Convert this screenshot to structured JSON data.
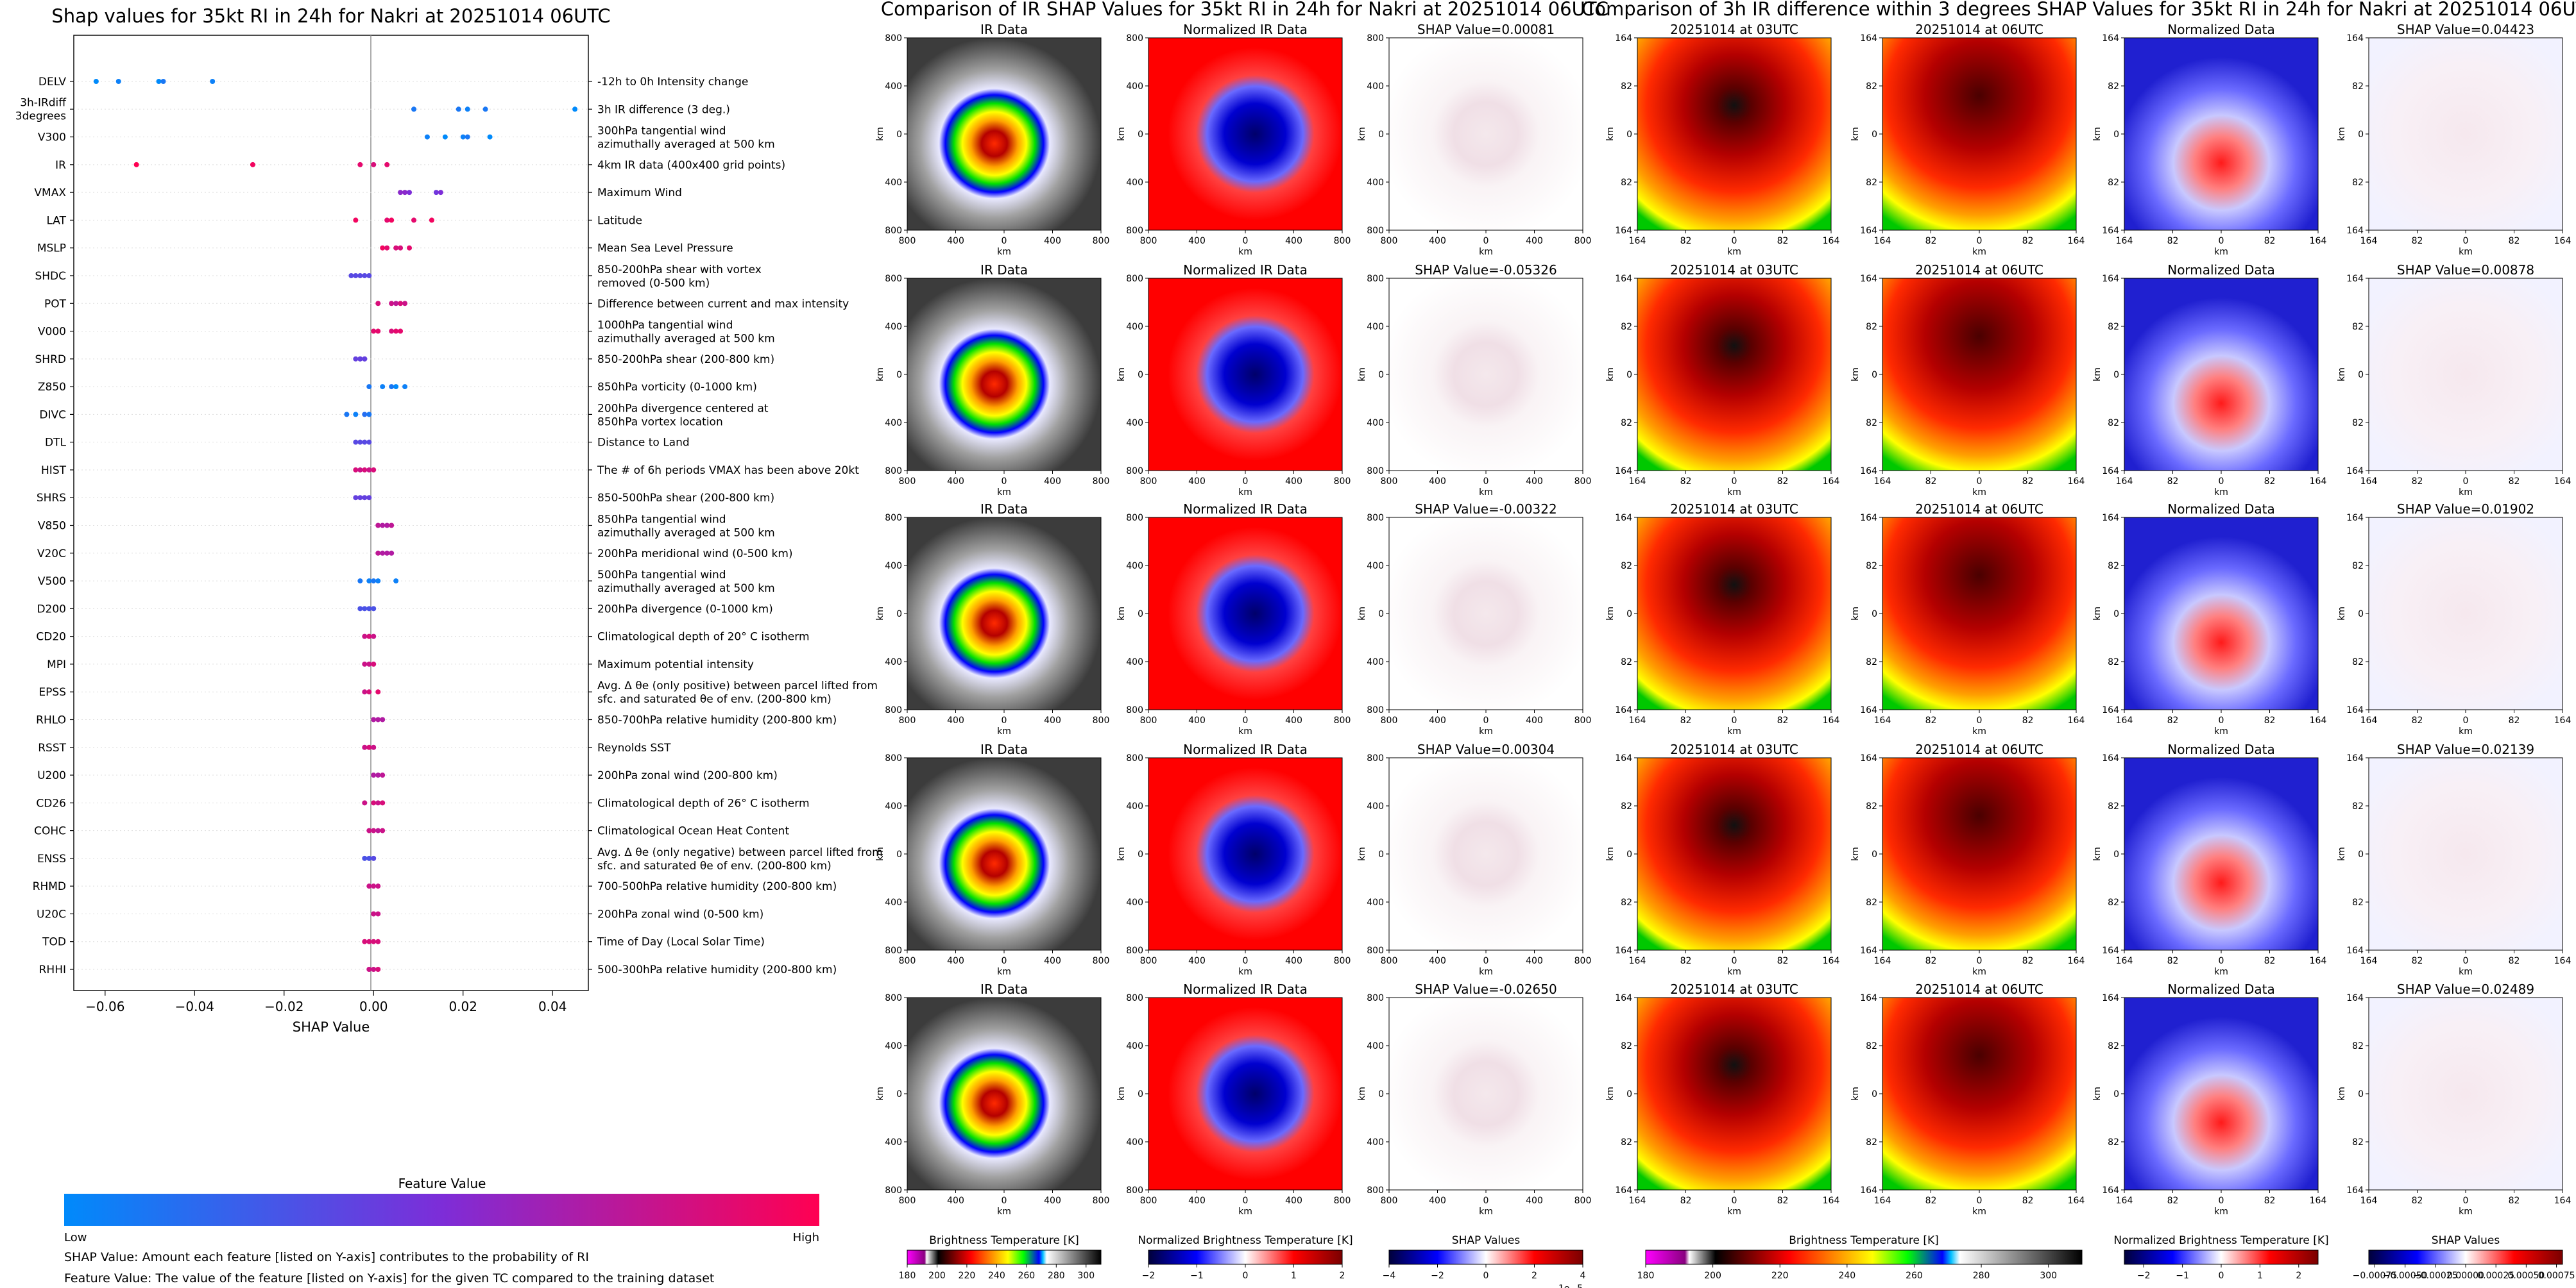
{
  "shap_panel": {
    "title": "Shap values for 35kt RI in 24h for Nakri at 20251014 06UTC",
    "xlabel": "SHAP Value",
    "xlim": [
      -0.067,
      0.048
    ],
    "xticks": [
      -0.06,
      -0.04,
      -0.02,
      0.0,
      0.02,
      0.04
    ],
    "xtick_labels": [
      "−0.06",
      "−0.04",
      "−0.02",
      "0.00",
      "0.02",
      "0.04"
    ],
    "colorbar_title": "Feature Value",
    "colorbar_low": "Low",
    "colorbar_high": "High",
    "colormap": [
      "#008afb",
      "#7d2dd8",
      "#ff0052"
    ],
    "note_shap": "SHAP Value: Amount each feature [listed on Y-axis] contributes to the probability of RI",
    "note_feature": "Feature Value: The value of the feature [listed on Y-axis] for the given TC compared to the training dataset"
  },
  "chart_data": [
    {
      "type": "scatter",
      "title": "Shap values for 35kt RI in 24h for Nakri at 20251014 06UTC",
      "xlabel": "SHAP Value",
      "xlim": [
        -0.067,
        0.048
      ],
      "features": [
        {
          "code": "DELV",
          "desc": "-12h to 0h Intensity change",
          "points": [
            [
              -0.062,
              0.0
            ],
            [
              -0.057,
              0.05
            ],
            [
              -0.048,
              0.0
            ],
            [
              -0.047,
              0.1
            ],
            [
              -0.036,
              0.05
            ]
          ]
        },
        {
          "code": "3h-IRdiff 3degrees",
          "desc": "3h IR difference (3 deg.)",
          "points": [
            [
              0.009,
              0.1
            ],
            [
              0.019,
              0.1
            ],
            [
              0.021,
              0.05
            ],
            [
              0.025,
              0.1
            ],
            [
              0.045,
              0.0
            ]
          ]
        },
        {
          "code": "V300",
          "desc": "300hPa tangential wind azimuthally averaged at 500 km",
          "points": [
            [
              0.012,
              0.05
            ],
            [
              0.016,
              0.0
            ],
            [
              0.02,
              0.05
            ],
            [
              0.021,
              0.1
            ],
            [
              0.026,
              0.0
            ]
          ]
        },
        {
          "code": "IR",
          "desc": "4km IR data (400x400 grid points)",
          "points": [
            [
              -0.053,
              1.0
            ],
            [
              -0.027,
              0.95
            ],
            [
              -0.003,
              0.9
            ],
            [
              0.0,
              0.85
            ],
            [
              0.003,
              0.9
            ]
          ]
        },
        {
          "code": "VMAX",
          "desc": "Maximum Wind",
          "points": [
            [
              0.006,
              0.55
            ],
            [
              0.007,
              0.55
            ],
            [
              0.008,
              0.5
            ],
            [
              0.014,
              0.45
            ],
            [
              0.015,
              0.5
            ]
          ]
        },
        {
          "code": "LAT",
          "desc": "Latitude",
          "points": [
            [
              -0.004,
              0.95
            ],
            [
              0.003,
              0.9
            ],
            [
              0.004,
              0.95
            ],
            [
              0.009,
              0.9
            ],
            [
              0.013,
              0.95
            ]
          ]
        },
        {
          "code": "MSLP",
          "desc": "Mean Sea Level Pressure",
          "points": [
            [
              0.002,
              0.95
            ],
            [
              0.003,
              0.9
            ],
            [
              0.005,
              0.85
            ],
            [
              0.006,
              0.85
            ],
            [
              0.008,
              0.9
            ]
          ]
        },
        {
          "code": "SHDC",
          "desc": "850-200hPa shear with vortex removed (0-500 km)",
          "points": [
            [
              -0.005,
              0.35
            ],
            [
              -0.004,
              0.35
            ],
            [
              -0.003,
              0.35
            ],
            [
              -0.002,
              0.35
            ],
            [
              -0.001,
              0.35
            ]
          ]
        },
        {
          "code": "POT",
          "desc": "Difference between current and max intensity",
          "points": [
            [
              0.001,
              0.85
            ],
            [
              0.004,
              0.8
            ],
            [
              0.005,
              0.75
            ],
            [
              0.006,
              0.85
            ],
            [
              0.007,
              0.8
            ]
          ]
        },
        {
          "code": "V000",
          "desc": "1000hPa tangential wind azimuthally averaged at 500 km",
          "points": [
            [
              0.0,
              0.9
            ],
            [
              0.001,
              0.9
            ],
            [
              0.004,
              0.85
            ],
            [
              0.005,
              0.9
            ],
            [
              0.006,
              0.9
            ]
          ]
        },
        {
          "code": "SHRD",
          "desc": "850-200hPa shear (200-800 km)",
          "points": [
            [
              -0.004,
              0.4
            ],
            [
              -0.003,
              0.4
            ],
            [
              -0.003,
              0.4
            ],
            [
              -0.002,
              0.4
            ],
            [
              -0.002,
              0.4
            ]
          ]
        },
        {
          "code": "Z850",
          "desc": "850hPa vorticity (0-1000 km)",
          "points": [
            [
              -0.001,
              0.1
            ],
            [
              0.002,
              0.05
            ],
            [
              0.004,
              0.1
            ],
            [
              0.005,
              0.0
            ],
            [
              0.007,
              0.05
            ]
          ]
        },
        {
          "code": "DIVC",
          "desc": "200hPa divergence centered at 850hPa vortex location",
          "points": [
            [
              -0.006,
              0.1
            ],
            [
              -0.004,
              0.05
            ],
            [
              -0.002,
              0.15
            ],
            [
              -0.001,
              0.1
            ]
          ]
        },
        {
          "code": "DTL",
          "desc": "Distance to Land",
          "points": [
            [
              -0.004,
              0.35
            ],
            [
              -0.003,
              0.35
            ],
            [
              -0.002,
              0.35
            ],
            [
              -0.001,
              0.35
            ]
          ]
        },
        {
          "code": "HIST",
          "desc": "The # of 6h periods VMAX has been above 20kt",
          "points": [
            [
              -0.004,
              0.85
            ],
            [
              -0.003,
              0.8
            ],
            [
              -0.002,
              0.85
            ],
            [
              -0.001,
              0.8
            ],
            [
              0.0,
              0.85
            ]
          ]
        },
        {
          "code": "SHRS",
          "desc": "850-500hPa shear (200-800 km)",
          "points": [
            [
              -0.004,
              0.4
            ],
            [
              -0.003,
              0.4
            ],
            [
              -0.002,
              0.4
            ],
            [
              -0.001,
              0.4
            ]
          ]
        },
        {
          "code": "V850",
          "desc": "850hPa tangential wind azimuthally averaged at 500 km",
          "points": [
            [
              0.001,
              0.75
            ],
            [
              0.002,
              0.7
            ],
            [
              0.003,
              0.7
            ],
            [
              0.004,
              0.75
            ]
          ]
        },
        {
          "code": "V20C",
          "desc": "200hPa meridional wind (0-500 km)",
          "points": [
            [
              0.001,
              0.75
            ],
            [
              0.002,
              0.7
            ],
            [
              0.003,
              0.7
            ],
            [
              0.004,
              0.7
            ]
          ]
        },
        {
          "code": "V500",
          "desc": "500hPa tangential wind azimuthally averaged at 500 km",
          "points": [
            [
              -0.003,
              0.1
            ],
            [
              -0.001,
              0.05
            ],
            [
              0.0,
              0.1
            ],
            [
              0.001,
              0.05
            ],
            [
              0.005,
              0.05
            ]
          ]
        },
        {
          "code": "D200",
          "desc": "200hPa divergence (0-1000 km)",
          "points": [
            [
              -0.003,
              0.3
            ],
            [
              -0.002,
              0.3
            ],
            [
              -0.001,
              0.3
            ],
            [
              0.0,
              0.3
            ]
          ]
        },
        {
          "code": "CD20",
          "desc": "Climatological depth of 20° C isotherm",
          "points": [
            [
              -0.002,
              0.8
            ],
            [
              -0.001,
              0.85
            ],
            [
              0.0,
              0.8
            ]
          ]
        },
        {
          "code": "MPI",
          "desc": "Maximum potential intensity",
          "points": [
            [
              -0.002,
              0.8
            ],
            [
              -0.001,
              0.8
            ],
            [
              0.0,
              0.85
            ]
          ]
        },
        {
          "code": "EPSS",
          "desc": "Avg. Δ θe (only positive) between parcel lifted from sfc. and saturated θe of env. (200-800 km)",
          "points": [
            [
              -0.002,
              0.8
            ],
            [
              -0.001,
              0.85
            ],
            [
              0.001,
              0.9
            ]
          ]
        },
        {
          "code": "RHLO",
          "desc": "850-700hPa relative humidity (200-800 km)",
          "points": [
            [
              0.0,
              0.7
            ],
            [
              0.001,
              0.7
            ],
            [
              0.002,
              0.7
            ]
          ]
        },
        {
          "code": "RSST",
          "desc": "Reynolds SST",
          "points": [
            [
              -0.002,
              0.8
            ],
            [
              -0.001,
              0.85
            ],
            [
              0.0,
              0.8
            ]
          ]
        },
        {
          "code": "U200",
          "desc": "200hPa zonal wind (200-800 km)",
          "points": [
            [
              0.0,
              0.7
            ],
            [
              0.001,
              0.7
            ],
            [
              0.002,
              0.75
            ]
          ]
        },
        {
          "code": "CD26",
          "desc": "Climatological depth of 26° C isotherm",
          "points": [
            [
              -0.002,
              0.8
            ],
            [
              0.0,
              0.85
            ],
            [
              0.001,
              0.8
            ],
            [
              0.002,
              0.85
            ]
          ]
        },
        {
          "code": "COHC",
          "desc": "Climatological Ocean Heat Content",
          "points": [
            [
              -0.001,
              0.8
            ],
            [
              0.0,
              0.8
            ],
            [
              0.001,
              0.75
            ],
            [
              0.002,
              0.8
            ]
          ]
        },
        {
          "code": "ENSS",
          "desc": "Avg. Δ θe (only negative) between parcel lifted from sfc. and saturated θe of env. (200-800 km)",
          "points": [
            [
              -0.002,
              0.3
            ],
            [
              -0.001,
              0.3
            ],
            [
              0.0,
              0.35
            ]
          ]
        },
        {
          "code": "RHMD",
          "desc": "700-500hPa relative humidity (200-800 km)",
          "points": [
            [
              -0.001,
              0.8
            ],
            [
              0.0,
              0.8
            ],
            [
              0.001,
              0.8
            ]
          ]
        },
        {
          "code": "U20C",
          "desc": "200hPa zonal wind (0-500 km)",
          "points": [
            [
              0.0,
              0.85
            ],
            [
              0.0,
              0.8
            ],
            [
              0.001,
              0.8
            ]
          ]
        },
        {
          "code": "TOD",
          "desc": "Time of Day (Local Solar Time)",
          "points": [
            [
              -0.002,
              0.85
            ],
            [
              -0.001,
              0.85
            ],
            [
              0.0,
              0.85
            ],
            [
              0.001,
              0.85
            ]
          ]
        },
        {
          "code": "RHHI",
          "desc": "500-300hPa relative humidity (200-800 km)",
          "points": [
            [
              -0.001,
              0.8
            ],
            [
              0.0,
              0.8
            ],
            [
              0.001,
              0.85
            ]
          ]
        }
      ]
    },
    {
      "type": "heatmap",
      "group": "ir",
      "title": "Comparison of IR SHAP Values for 35kt RI in 24h for Nakri at 20251014 06UTC",
      "column_titles": [
        "IR Data",
        "Normalized IR Data"
      ],
      "shap_titles": [
        "SHAP Value=0.00081",
        "SHAP Value=-0.05326",
        "SHAP Value=-0.00322",
        "SHAP Value=0.00304",
        "SHAP Value=-0.02650"
      ],
      "axis_label": "km",
      "ticks": [
        "800",
        "400",
        "0",
        "400",
        "800"
      ],
      "colorbars": [
        {
          "label": "Brightness Temperature [K]",
          "ticks": [
            "180",
            "200",
            "220",
            "240",
            "260",
            "280",
            "300"
          ],
          "range": [
            180,
            310
          ]
        },
        {
          "label": "Normalized Brightness Temperature [K]",
          "ticks": [
            "−2",
            "−1",
            "0",
            "1",
            "2"
          ],
          "range": [
            -2,
            2
          ]
        },
        {
          "label": "SHAP Values",
          "ticks": [
            "−4",
            "−2",
            "0",
            "2",
            "4"
          ],
          "range": [
            -4e-05,
            4e-05
          ],
          "multiplier": "1e−5"
        }
      ]
    },
    {
      "type": "heatmap",
      "group": "irdiff",
      "title": "Comparison of 3h IR difference within 3 degrees SHAP Values for 35kt RI in 24h for Nakri at 20251014 06UTC",
      "column_titles": [
        "20251014 at 03UTC",
        "20251014 at 06UTC",
        "Normalized Data"
      ],
      "shap_titles": [
        "SHAP Value=0.04423",
        "SHAP Value=0.00878",
        "SHAP Value=0.01902",
        "SHAP Value=0.02139",
        "SHAP Value=0.02489"
      ],
      "axis_label": "km",
      "ticks": [
        "164",
        "82",
        "0",
        "82",
        "164"
      ],
      "colorbars": [
        {
          "label": "Brightness Temperature [K]",
          "ticks": [
            "180",
            "200",
            "220",
            "240",
            "260",
            "280",
            "300"
          ],
          "range": [
            180,
            310
          ]
        },
        {
          "label": "Normalized Brightness Temperature [K]",
          "ticks": [
            "−2",
            "−1",
            "0",
            "1",
            "2"
          ],
          "range": [
            -2.5,
            2.5
          ]
        },
        {
          "label": "SHAP Values",
          "ticks": [
            "−0.00075",
            "−0.00050",
            "−0.00025",
            "0.00000",
            "0.00025",
            "0.00050",
            "0.00075"
          ],
          "range": [
            -0.0008,
            0.0008
          ]
        }
      ]
    }
  ]
}
